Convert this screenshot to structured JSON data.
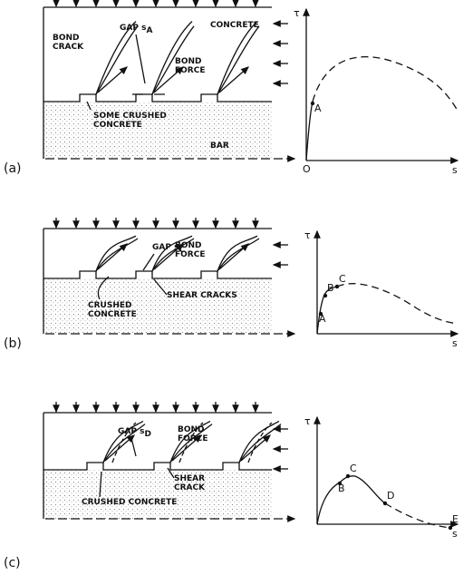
{
  "panels": [
    {
      "tag": "(a)",
      "labels": {
        "bond_crack": [
          "BOND",
          "CRACK"
        ],
        "gap": {
          "text": "GAP s",
          "sub": "A"
        },
        "concrete": "CONCRETE",
        "bond_force": [
          "BOND",
          "FORCE"
        ],
        "crushed": [
          "SOME CRUSHED",
          "CONCRETE"
        ],
        "bar": "BAR"
      },
      "graph": {
        "y_axis": "τ",
        "x_axis": "s",
        "origin": "O",
        "points": [
          "A"
        ]
      }
    },
    {
      "tag": "(b)",
      "labels": {
        "gap": {
          "text": "GAP s",
          "sub": "C"
        },
        "bond_force": [
          "BOND",
          "FORCE"
        ],
        "crushed": [
          "CRUSHED",
          "CONCRETE"
        ],
        "shear": "SHEAR CRACKS"
      },
      "graph": {
        "y_axis": "τ",
        "x_axis": "s",
        "points": [
          "A",
          "B",
          "C"
        ]
      }
    },
    {
      "tag": "(c)",
      "labels": {
        "gap": {
          "text": "GAP s",
          "sub": "D"
        },
        "bond_force": [
          "BOND",
          "FORCE"
        ],
        "shear": [
          "SHEAR",
          "CRACK"
        ],
        "crushed": "CRUSHED CONCRETE"
      },
      "graph": {
        "y_axis": "τ",
        "x_axis": "s",
        "points": [
          "B",
          "C",
          "D",
          "E"
        ]
      }
    }
  ]
}
